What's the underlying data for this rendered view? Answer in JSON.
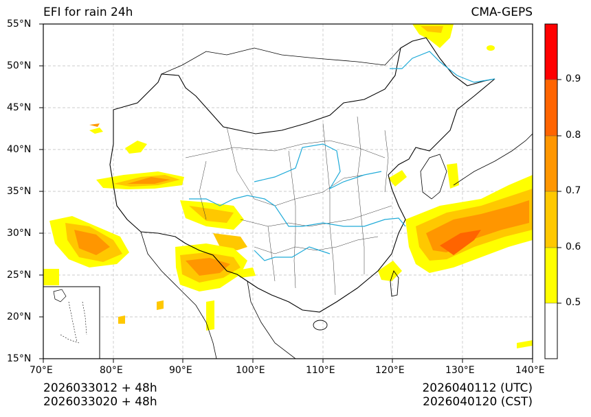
{
  "title_left": "EFI for rain 24h",
  "title_right": "CMA-GEPS",
  "lat_ticks": [
    "55°N",
    "50°N",
    "45°N",
    "40°N",
    "35°N",
    "30°N",
    "25°N",
    "20°N",
    "15°N"
  ],
  "lon_ticks": [
    "70°E",
    "80°E",
    "90°E",
    "100°E",
    "110°E",
    "120°E",
    "130°E",
    "140°E"
  ],
  "colorbar": {
    "ticks": [
      "0.5",
      "0.6",
      "0.7",
      "0.8",
      "0.9"
    ],
    "colors": [
      "#ffffff",
      "#ffff00",
      "#ffc800",
      "#ff9600",
      "#ff6400",
      "#ff0000"
    ]
  },
  "footer": {
    "init_utc": "2026033012 + 48h",
    "init_cst": "2026033020 + 48h",
    "valid_utc": "2026040112 (UTC)",
    "valid_cst": "2026040120 (CST)"
  },
  "map_extent": {
    "lon": [
      70,
      140
    ],
    "lat": [
      15,
      55
    ]
  }
}
